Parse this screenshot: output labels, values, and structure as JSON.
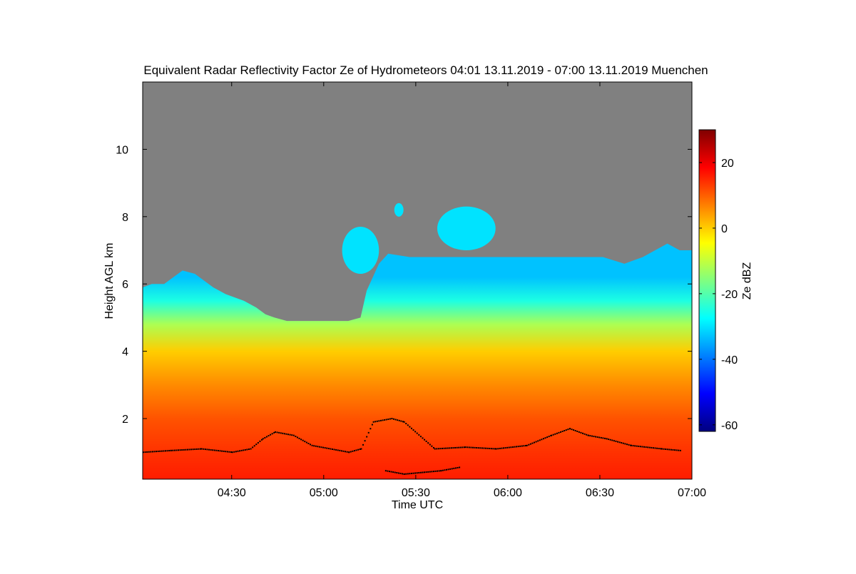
{
  "chart_data": {
    "type": "heatmap",
    "title": "Equivalent Radar Reflectivity Factor Ze of Hydrometeors   04:01 13.11.2019 - 07:00 13.11.2019 Muenchen",
    "xlabel": "Time UTC",
    "ylabel": "Height AGL km",
    "x_ticks": [
      {
        "minutes": 30,
        "label": "04:30"
      },
      {
        "minutes": 60,
        "label": "05:00"
      },
      {
        "minutes": 90,
        "label": "05:30"
      },
      {
        "minutes": 120,
        "label": "06:00"
      },
      {
        "minutes": 150,
        "label": "06:30"
      },
      {
        "minutes": 180,
        "label": "07:00"
      }
    ],
    "x_range_minutes_after_04_00": [
      1,
      180
    ],
    "y_ticks": [
      2,
      4,
      6,
      8,
      10
    ],
    "ylim": [
      0.2,
      12.0
    ],
    "no_data_color": "#808080",
    "colorbar": {
      "label": "Ze dBZ",
      "range": [
        -62,
        30
      ],
      "ticks": [
        -60,
        -40,
        -20,
        0,
        20
      ],
      "colors": [
        "#000080",
        "#0000ff",
        "#0080ff",
        "#00ffff",
        "#80ff80",
        "#ffff00",
        "#ff8000",
        "#ff0000",
        "#800000"
      ]
    },
    "echo_top_km": [
      [
        1,
        5.9
      ],
      [
        4,
        6.0
      ],
      [
        8,
        6.0
      ],
      [
        11,
        6.2
      ],
      [
        14,
        6.4
      ],
      [
        18,
        6.3
      ],
      [
        21,
        6.1
      ],
      [
        24,
        5.9
      ],
      [
        28,
        5.7
      ],
      [
        31,
        5.6
      ],
      [
        34,
        5.5
      ],
      [
        38,
        5.3
      ],
      [
        41,
        5.1
      ],
      [
        44,
        5.0
      ],
      [
        48,
        4.9
      ],
      [
        54,
        4.9
      ],
      [
        61,
        4.9
      ],
      [
        68,
        4.9
      ],
      [
        72,
        5.0
      ],
      [
        74,
        5.8
      ],
      [
        78,
        6.6
      ],
      [
        81,
        6.9
      ],
      [
        88,
        6.8
      ],
      [
        98,
        6.8
      ],
      [
        108,
        6.8
      ],
      [
        121,
        6.8
      ],
      [
        131,
        6.8
      ],
      [
        141,
        6.8
      ],
      [
        151,
        6.8
      ],
      [
        158,
        6.6
      ],
      [
        164,
        6.8
      ],
      [
        168,
        7.0
      ],
      [
        172,
        7.2
      ],
      [
        176,
        7.0
      ],
      [
        180,
        7.0
      ]
    ],
    "reflectivity_profile": [
      {
        "height_km": 0.2,
        "ze_dbz": 16
      },
      {
        "height_km": 1.0,
        "ze_dbz": 14
      },
      {
        "height_km": 2.0,
        "ze_dbz": 11
      },
      {
        "height_km": 3.0,
        "ze_dbz": 6
      },
      {
        "height_km": 4.0,
        "ze_dbz": 0
      },
      {
        "height_km": 4.8,
        "ze_dbz": -12
      },
      {
        "height_km": 5.5,
        "ze_dbz": -25
      },
      {
        "height_km": 6.2,
        "ze_dbz": -33
      }
    ],
    "cloud_base_km": [
      [
        1,
        1.0
      ],
      [
        10,
        1.05
      ],
      [
        20,
        1.1
      ],
      [
        30,
        1.0
      ],
      [
        36,
        1.1
      ],
      [
        40,
        1.4
      ],
      [
        44,
        1.6
      ],
      [
        50,
        1.5
      ],
      [
        56,
        1.2
      ],
      [
        62,
        1.1
      ],
      [
        68,
        1.0
      ],
      [
        72,
        1.1
      ],
      [
        76,
        1.9
      ],
      [
        82,
        2.0
      ],
      [
        86,
        1.9
      ],
      [
        96,
        1.1
      ],
      [
        106,
        1.15
      ],
      [
        116,
        1.1
      ],
      [
        126,
        1.2
      ],
      [
        134,
        1.5
      ],
      [
        140,
        1.7
      ],
      [
        146,
        1.5
      ],
      [
        152,
        1.4
      ],
      [
        160,
        1.2
      ],
      [
        170,
        1.1
      ],
      [
        176,
        1.05
      ]
    ],
    "cloud_base_lower_km": [
      [
        80,
        0.45
      ],
      [
        86,
        0.35
      ],
      [
        92,
        0.4
      ],
      [
        98,
        0.45
      ],
      [
        104,
        0.55
      ]
    ],
    "detached_layers": [
      {
        "minutes": [
          66,
          78
        ],
        "height_km": [
          6.3,
          7.7
        ]
      },
      {
        "minutes": [
          97,
          116
        ],
        "height_km": [
          7.0,
          8.3
        ]
      },
      {
        "minutes": [
          83,
          86
        ],
        "height_km": [
          8.0,
          8.4
        ]
      }
    ]
  }
}
